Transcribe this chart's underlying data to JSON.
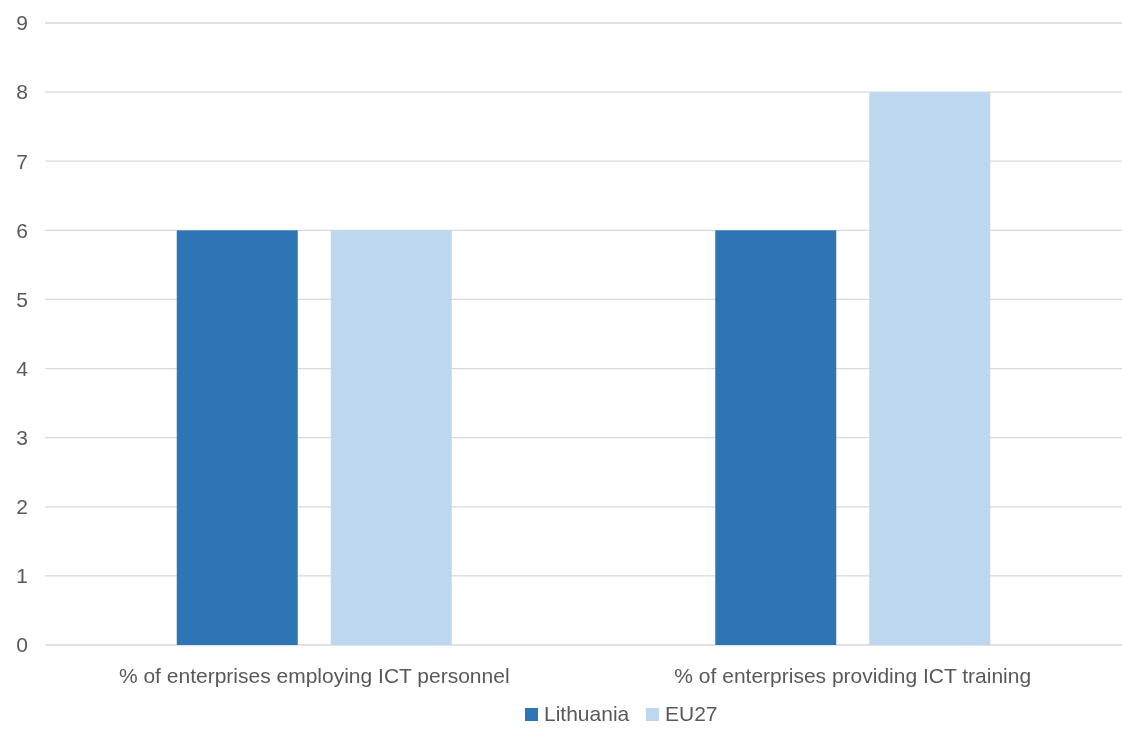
{
  "chart_data": {
    "type": "bar",
    "categories": [
      "% of enterprises employing ICT personnel",
      "% of enterprises providing ICT training"
    ],
    "series": [
      {
        "name": "Lithuania",
        "color": "#2e75b6",
        "values": [
          6,
          6
        ]
      },
      {
        "name": "EU27",
        "color": "#bdd7ee",
        "values": [
          6,
          8
        ]
      }
    ],
    "ylim": [
      0,
      9
    ],
    "yticks": [
      0,
      1,
      2,
      3,
      4,
      5,
      6,
      7,
      8,
      9
    ],
    "grid": "y",
    "legend": "bottom"
  }
}
